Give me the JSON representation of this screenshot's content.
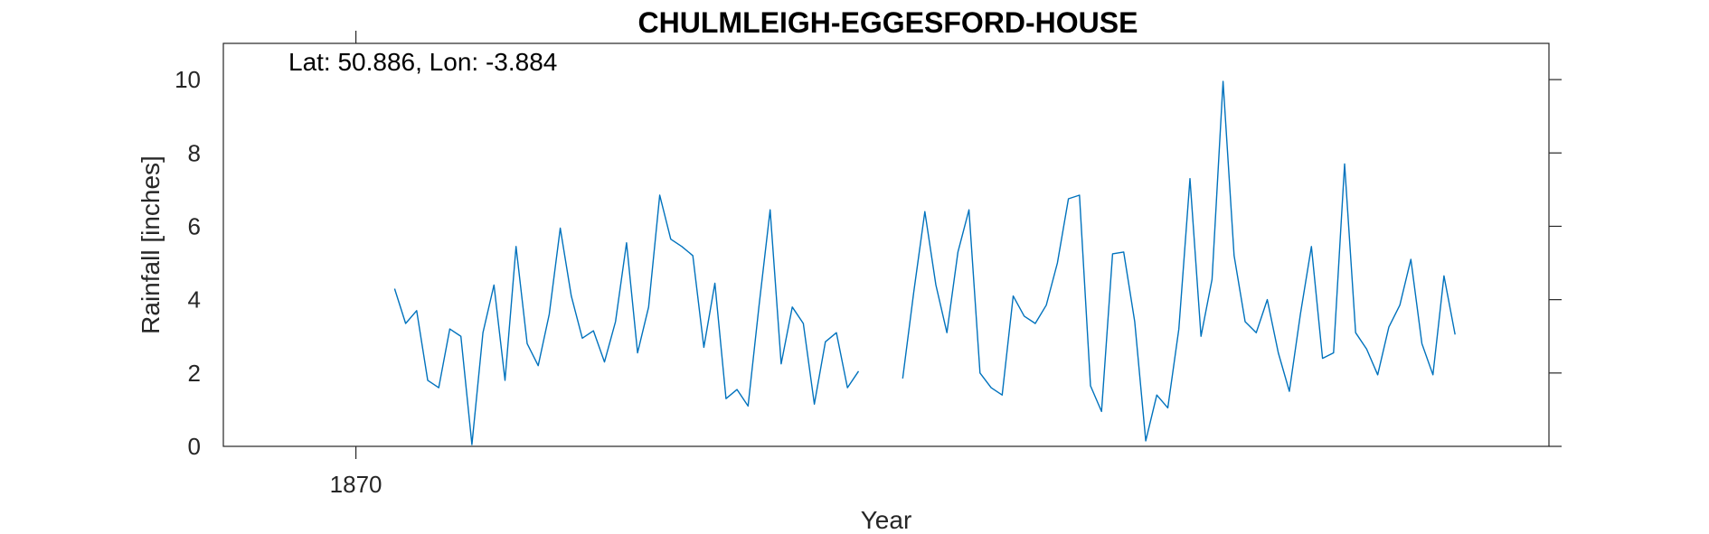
{
  "chart_data": {
    "type": "line",
    "title": "CHULMLEIGH-EGGESFORD-HOUSE",
    "annotation": "Lat: 50.886, Lon: -3.884",
    "xlabel": "Year",
    "ylabel": "Rainfall [inches]",
    "xlim": [
      1858,
      1978
    ],
    "ylim": [
      0,
      11
    ],
    "xticks": [
      1870
    ],
    "yticks": [
      0,
      2,
      4,
      6,
      8,
      10
    ],
    "grid": false,
    "line_color": "#0072BD",
    "series": [
      {
        "segments": [
          {
            "x": [
              1873.5,
              1874.5,
              1875.5,
              1876.5,
              1877.5,
              1878.5,
              1879.5,
              1880.5,
              1881.5,
              1882.5,
              1883.5,
              1884.5,
              1885.5,
              1886.5,
              1887.5,
              1888.5,
              1889.5,
              1890.5,
              1891.5,
              1892.5,
              1893.5,
              1894.5,
              1895.5,
              1896.5,
              1897.5,
              1898.5,
              1899.5,
              1900.5,
              1901.5,
              1902.5,
              1903.5,
              1904.5,
              1905.5,
              1906.5,
              1907.5,
              1908.5,
              1909.5,
              1910.5,
              1911.5,
              1912.5,
              1913.5,
              1914.5,
              1915.5,
              1916.5
            ],
            "y": [
              4.3,
              3.35,
              3.7,
              1.8,
              1.6,
              3.2,
              3.0,
              0.05,
              3.1,
              4.4,
              1.8,
              5.45,
              2.8,
              2.2,
              3.6,
              5.95,
              4.1,
              2.95,
              3.15,
              2.3,
              3.4,
              5.55,
              2.55,
              3.8,
              6.85,
              5.65,
              5.45,
              5.2,
              2.7,
              4.45,
              1.3,
              1.55,
              1.1,
              3.85,
              6.45,
              2.25,
              3.8,
              3.35,
              1.15,
              2.85,
              3.1,
              1.6,
              2.05,
              null
            ]
          },
          {
            "x": [
              1919.5,
              1920.5,
              1921.5,
              1922.5,
              1923.5,
              1924.5,
              1925.5,
              1926.5,
              1927.5,
              1928.5,
              1929.5,
              1930.5,
              1931.5,
              1932.5,
              1933.5,
              1934.5,
              1935.5,
              1936.5,
              1937.5,
              1938.5,
              1939.5,
              1940.5,
              1941.5,
              1942.5,
              1943.5,
              1944.5,
              1945.5,
              1946.5,
              1947.5,
              1948.5,
              1949.5,
              1950.5,
              1951.5,
              1952.5,
              1953.5,
              1954.5,
              1955.5,
              1956.5,
              1957.5,
              1958.5,
              1959.5,
              1960.5,
              1961.5,
              1962.5,
              1963.5,
              1964.5,
              1965.5,
              1966.5,
              1967.5,
              1968.5,
              1969.5
            ],
            "y": [
              1.85,
              4.2,
              6.4,
              4.4,
              3.1,
              5.3,
              6.45,
              2.0,
              1.6,
              1.4,
              4.1,
              3.55,
              3.35,
              3.85,
              5.0,
              6.75,
              6.85,
              1.65,
              0.95,
              5.25,
              5.3,
              3.4,
              0.15,
              1.4,
              1.05,
              3.2,
              7.3,
              3.0,
              4.55,
              9.95,
              5.2,
              3.4,
              3.1,
              4.0,
              2.55,
              1.5,
              3.6,
              5.45,
              2.4,
              2.55,
              7.7,
              3.1,
              2.65,
              1.95,
              3.25,
              3.85,
              5.1,
              2.8,
              1.95,
              4.65,
              3.05
            ]
          }
        ]
      }
    ]
  }
}
